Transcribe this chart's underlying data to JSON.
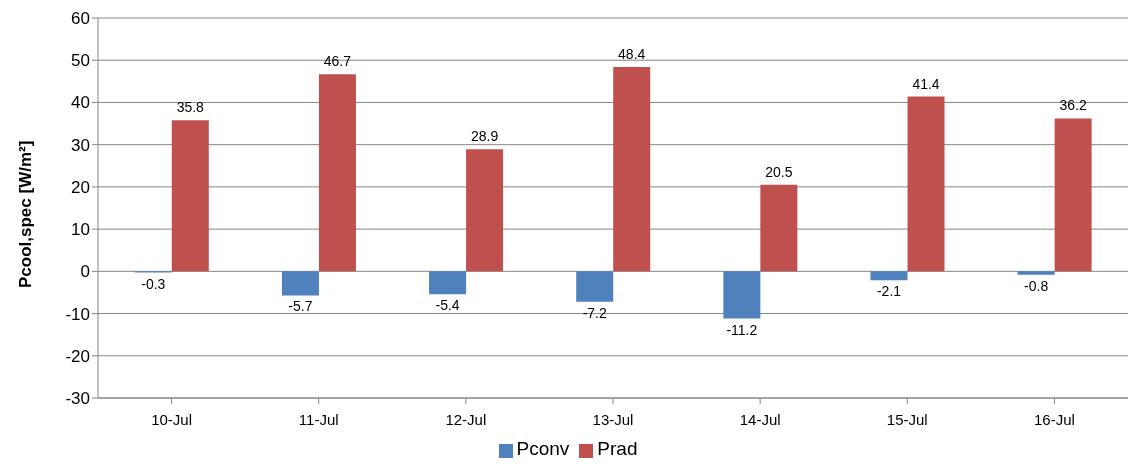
{
  "chart_data": {
    "type": "bar",
    "ylabel": "Pcool,spec [W/m²]",
    "categories": [
      "10-Jul",
      "11-Jul",
      "12-Jul",
      "13-Jul",
      "14-Jul",
      "15-Jul",
      "16-Jul"
    ],
    "series": [
      {
        "name": "Pconv",
        "color": "#4f81bd",
        "values": [
          -0.3,
          -5.7,
          -5.4,
          -7.2,
          -11.2,
          -2.1,
          -0.8
        ]
      },
      {
        "name": "Prad",
        "color": "#c0504d",
        "values": [
          35.8,
          46.7,
          28.9,
          48.4,
          20.5,
          41.4,
          36.2
        ]
      }
    ],
    "ylim": [
      -30,
      60
    ],
    "yticks": [
      -30,
      -20,
      -10,
      0,
      10,
      20,
      30,
      40,
      50,
      60
    ],
    "grid": "y",
    "legend": "bottom",
    "data_labels": true
  }
}
